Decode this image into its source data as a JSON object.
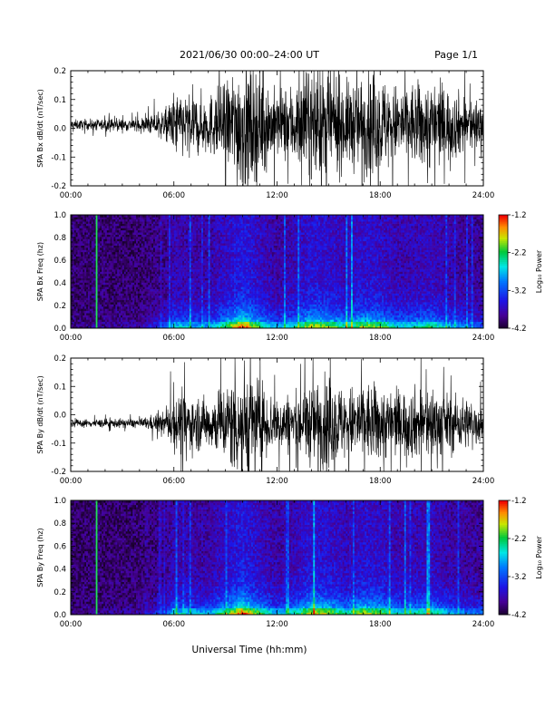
{
  "header": {
    "title": "2021/06/30   00:00–24:00 UT",
    "page": "Page 1/1"
  },
  "xlabel": "Universal Time (hh:mm)",
  "chart_data": [
    {
      "type": "line",
      "ylabel": "SPA Bx dB/dt (nT/sec)",
      "xlim": [
        0,
        24
      ],
      "ylim": [
        -0.2,
        0.2
      ],
      "x_ticks": [
        "00:00",
        "06:00",
        "12:00",
        "18:00",
        "24:00"
      ],
      "y_ticks": [
        "-0.2",
        "-0.1",
        "0.0",
        "0.1",
        "0.2"
      ],
      "series": [
        {
          "envelope_hours": [
            0,
            4,
            5.5,
            6,
            8,
            9,
            10,
            11,
            12,
            13,
            14,
            15,
            16,
            17,
            18,
            19,
            20,
            21,
            22,
            23,
            24
          ],
          "amplitude": [
            0.015,
            0.02,
            0.045,
            0.1,
            0.09,
            0.13,
            0.22,
            0.16,
            0.1,
            0.13,
            0.17,
            0.16,
            0.13,
            0.15,
            0.15,
            0.12,
            0.13,
            0.14,
            0.11,
            0.09,
            0.08
          ],
          "offset": 0.012
        }
      ]
    },
    {
      "type": "heatmap",
      "ylabel": "SPA Bx Freq (hz)",
      "xlim": [
        0,
        24
      ],
      "ylim": [
        0,
        1.0
      ],
      "x_ticks": [
        "00:00",
        "06:00",
        "12:00",
        "18:00",
        "24:00"
      ],
      "y_ticks": [
        "0.0",
        "0.2",
        "0.4",
        "0.6",
        "0.8",
        "1.0"
      ],
      "colorbar": {
        "label": "Log₁₀ Power",
        "range": [
          -4.2,
          -1.2
        ],
        "ticks": [
          "-1.2",
          "-2.2",
          "-3.2",
          "-4.2"
        ]
      },
      "activity_hours": [
        0,
        4,
        5.5,
        6,
        8,
        9,
        10,
        11,
        12,
        13,
        14,
        15,
        16,
        17,
        18,
        19,
        20,
        21,
        22,
        23,
        24
      ],
      "activity": [
        0.05,
        0.1,
        0.3,
        0.55,
        0.45,
        0.7,
        1.0,
        0.7,
        0.45,
        0.6,
        0.85,
        0.8,
        0.6,
        0.8,
        0.75,
        0.55,
        0.6,
        0.65,
        0.5,
        0.4,
        0.35
      ],
      "marker_hour": 1.5
    },
    {
      "type": "line",
      "ylabel": "SPA By dB/dt (nT/sec)",
      "xlim": [
        0,
        24
      ],
      "ylim": [
        -0.2,
        0.2
      ],
      "x_ticks": [
        "00:00",
        "06:00",
        "12:00",
        "18:00",
        "24:00"
      ],
      "y_ticks": [
        "-0.2",
        "-0.1",
        "0.0",
        "0.1",
        "0.2"
      ],
      "series": [
        {
          "envelope_hours": [
            0,
            4,
            5.5,
            6,
            8,
            9,
            10,
            11,
            12,
            13,
            14,
            15,
            16,
            17,
            18,
            19,
            20,
            21,
            22,
            23,
            24
          ],
          "amplitude": [
            0.012,
            0.015,
            0.035,
            0.09,
            0.08,
            0.12,
            0.2,
            0.13,
            0.08,
            0.1,
            0.13,
            0.14,
            0.11,
            0.13,
            0.12,
            0.1,
            0.11,
            0.12,
            0.09,
            0.08,
            0.07
          ],
          "offset": -0.03
        }
      ]
    },
    {
      "type": "heatmap",
      "ylabel": "SPA By Freq (hz)",
      "xlim": [
        0,
        24
      ],
      "ylim": [
        0,
        1.0
      ],
      "x_ticks": [
        "00:00",
        "06:00",
        "12:00",
        "18:00",
        "24:00"
      ],
      "y_ticks": [
        "0.0",
        "0.2",
        "0.4",
        "0.6",
        "0.8",
        "1.0"
      ],
      "colorbar": {
        "label": "Log₁₀ Power",
        "range": [
          -4.2,
          -1.2
        ],
        "ticks": [
          "-1.2",
          "-2.2",
          "-3.2",
          "-4.2"
        ]
      },
      "activity_hours": [
        0,
        4,
        5.5,
        6,
        8,
        9,
        10,
        11,
        12,
        13,
        14,
        15,
        16,
        17,
        18,
        19,
        20,
        21,
        22,
        23,
        24
      ],
      "activity": [
        0.05,
        0.1,
        0.3,
        0.55,
        0.45,
        0.7,
        1.0,
        0.7,
        0.45,
        0.6,
        0.85,
        0.8,
        0.6,
        0.8,
        0.75,
        0.55,
        0.6,
        0.65,
        0.5,
        0.4,
        0.35
      ],
      "marker_hour": 1.5
    }
  ]
}
